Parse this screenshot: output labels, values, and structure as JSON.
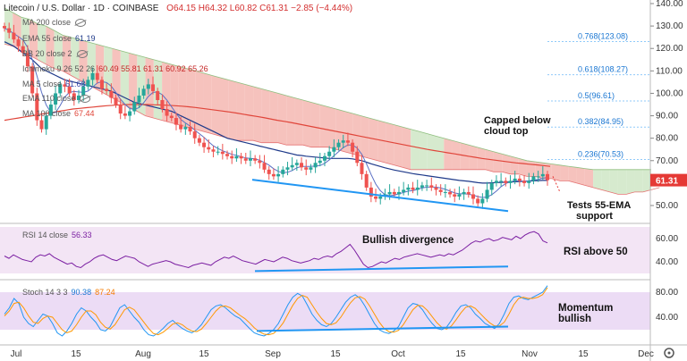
{
  "header": {
    "symbol": "Litecoin / U.S. Dollar · 1D · COINBASE",
    "ohlc": "O64.15 H64.32 L60.82 C61.31 −2.85 (−4.44%)"
  },
  "indicators": [
    {
      "label": "MA 200 close",
      "value": ""
    },
    {
      "label": "EMA 55 close",
      "value": "61.19"
    },
    {
      "label": "BB 20 close 2",
      "value": ""
    },
    {
      "label": "Ichimoku 9 26 52 26",
      "value": "60.49  55.81  61.31  60.92  65.26"
    },
    {
      "label": "MA 5 close",
      "value": "61.68"
    },
    {
      "label": "EMA 110 close",
      "value": ""
    },
    {
      "label": "MA 100 close",
      "value": "67.44"
    }
  ],
  "rsi_label": {
    "label": "RSI 14 close",
    "value": "56.33"
  },
  "stoch_label": {
    "label": "Stoch 14 3 3",
    "value1": "90.38",
    "value2": "87.24"
  },
  "annotations": {
    "capped": [
      "Capped below",
      "cloud top"
    ],
    "tests": [
      "Tests 55-EMA",
      "support"
    ],
    "bullish_div": "Bullish divergence",
    "rsi_above": "RSI above 50",
    "momentum": [
      "Momentum",
      "bullish"
    ]
  },
  "colors": {
    "cloud_red": "#f5b7b1",
    "cloud_green": "#cfe6c5",
    "ema55": "#1f3a8a",
    "ma100": "#e0453a",
    "ma5": "#5a6fc4",
    "price_tag": "#e53935",
    "rsi_line": "#7b1fa2",
    "stoch_k": "#2196f3",
    "stoch_d": "#ff9800",
    "trendline": "#2196f3"
  },
  "chart_data": {
    "type": "candlestick",
    "price_axis": {
      "ticks": [
        140,
        130,
        120,
        110,
        100,
        90,
        80,
        70,
        60,
        50
      ],
      "range": [
        42.5,
        142
      ]
    },
    "time_axis": [
      "Jul",
      "15",
      "Aug",
      "15",
      "Sep",
      "15",
      "Oct",
      "15",
      "Nov",
      "15",
      "Dec"
    ],
    "last_price": "61.31",
    "fib_levels": [
      {
        "label": "0.768(123.08)",
        "value": 123.08
      },
      {
        "label": "0.618(108.27)",
        "value": 108.27
      },
      {
        "label": "0.5(96.61)",
        "value": 96.61
      },
      {
        "label": "0.382(84.95)",
        "value": 84.95
      },
      {
        "label": "0.236(70.53)",
        "value": 70.53
      }
    ],
    "close": [
      129,
      127,
      124,
      121,
      118,
      112,
      100,
      88,
      84,
      90,
      95,
      100,
      104,
      103,
      100,
      97,
      99,
      103,
      106,
      109,
      106,
      102,
      101,
      98,
      95,
      91,
      90,
      92,
      96,
      99,
      102,
      104,
      101,
      97,
      93,
      90,
      89,
      86,
      84,
      85,
      83,
      80,
      78,
      76,
      75,
      74,
      74,
      73,
      72,
      71,
      72,
      71,
      70,
      71,
      70,
      69,
      66,
      64,
      63,
      64,
      66,
      67,
      68,
      69,
      67,
      66,
      67,
      69,
      70,
      72,
      74,
      76,
      78,
      79,
      78,
      74,
      69,
      64,
      58,
      54,
      53,
      54,
      55,
      56,
      55,
      56,
      57,
      58,
      57,
      58,
      59,
      59,
      58,
      57,
      56,
      56,
      55,
      54,
      55,
      56,
      55,
      53,
      51,
      53,
      57,
      60,
      61,
      61,
      60,
      61,
      62,
      61,
      60,
      61,
      63,
      63,
      64,
      61.3
    ],
    "ema55": [
      123,
      122,
      121,
      119.5,
      118,
      116.5,
      115,
      113,
      111,
      110,
      109,
      108,
      107,
      106,
      105.5,
      105,
      104.5,
      104,
      103.5,
      103,
      102.5,
      102,
      101.5,
      101,
      100,
      99,
      98,
      97,
      96,
      95.5,
      95,
      94.5,
      94,
      93.5,
      93,
      92.5,
      92,
      91,
      90,
      89,
      88,
      87,
      86,
      85,
      84,
      83,
      82,
      81,
      80,
      79.5,
      79,
      78.5,
      78,
      77.5,
      77,
      76.5,
      76,
      75.5,
      75,
      74.5,
      74,
      73.5,
      73,
      72.5,
      72.3,
      72,
      71.8,
      71.6,
      71.4,
      71.2,
      71,
      71,
      71,
      71,
      71,
      70.8,
      70.4,
      70,
      69.3,
      68.6,
      68,
      67.4,
      66.8,
      66.3,
      65.8,
      65.4,
      65,
      64.6,
      64.2,
      63.9,
      63.6,
      63.3,
      63,
      62.7,
      62.4,
      62.1,
      61.8,
      61.5,
      61.2,
      61,
      60.8,
      60.5,
      60.2,
      60,
      60,
      60.1,
      60.2,
      60.3,
      60.4,
      60.5,
      60.6,
      60.7,
      60.8,
      60.9,
      61,
      61.1,
      61.2,
      61.2
    ],
    "ma100": [
      88,
      88.5,
      89,
      89.5,
      90,
      90.5,
      91,
      91.5,
      92,
      92.5,
      93,
      93.3,
      93.6,
      93.9,
      94.2,
      94.5,
      94.7,
      94.9,
      95,
      95,
      95,
      95,
      94.9,
      94.8,
      94.7,
      94.5,
      94.3,
      94,
      93.7,
      93.3,
      92.9,
      92.5,
      92.1,
      91.7,
      91.2,
      90.7,
      90.2,
      89.7,
      89.2,
      88.6,
      88,
      87.5,
      87,
      86.4,
      85.8,
      85.2,
      84.6,
      84,
      83.4,
      82.8,
      82.2,
      81.6,
      81,
      80.4,
      79.8,
      79.2,
      78.6,
      78,
      77.4,
      76.8,
      76.2,
      75.6,
      75,
      74.5,
      74,
      73.5,
      73,
      72.5,
      72,
      71.5,
      71,
      70.6,
      70.2,
      69.8,
      69.4,
      69,
      68.7,
      68.4,
      68.1,
      67.8,
      67.44
    ],
    "cloud_top": [
      138,
      136,
      134,
      133,
      131,
      130,
      128,
      126,
      125,
      124,
      123,
      122,
      121,
      120,
      119,
      118,
      117,
      116,
      115,
      114,
      113,
      112,
      111,
      110,
      109,
      108,
      107,
      106,
      105,
      104,
      103,
      102,
      101,
      100,
      99,
      98,
      97,
      96,
      95,
      94,
      93,
      92,
      91,
      90,
      89,
      88,
      87,
      86,
      85,
      84,
      83,
      82,
      81,
      80,
      79,
      78,
      77,
      76,
      75,
      74,
      73,
      72,
      71,
      70,
      69.5,
      69,
      68.5,
      68,
      67.5,
      67,
      66.5,
      66,
      66,
      66,
      66,
      66,
      66,
      66,
      66
    ],
    "cloud_bottom": [
      122,
      121,
      119,
      117,
      115,
      113,
      111,
      110,
      108,
      106,
      104,
      102,
      100,
      98,
      96,
      94,
      92,
      90,
      89,
      88,
      87,
      86,
      85,
      84,
      83,
      82,
      81,
      80,
      79,
      79,
      79,
      78,
      78,
      78,
      77,
      77,
      77,
      76,
      76,
      76,
      75,
      74,
      73,
      72,
      71,
      70,
      69,
      68,
      67,
      66,
      66,
      66,
      66,
      66,
      66,
      66,
      66,
      66,
      66,
      65,
      65,
      64,
      64,
      63,
      63,
      62,
      62,
      61,
      61,
      60,
      59,
      58,
      57,
      56,
      55,
      55,
      56,
      56,
      57,
      58
    ]
  },
  "rsi": {
    "ticks": [
      60,
      40
    ],
    "values": [
      45,
      43,
      46,
      44,
      42,
      41,
      40,
      44,
      46,
      45,
      47,
      44,
      42,
      40,
      38,
      39,
      36,
      35,
      38,
      40,
      43,
      45,
      46,
      44,
      42,
      41,
      43,
      45,
      44,
      43,
      40,
      38,
      36,
      38,
      39,
      40,
      41,
      40,
      38,
      37,
      36,
      35,
      37,
      38,
      39,
      38,
      37,
      40,
      42,
      44,
      43,
      45,
      43,
      41,
      40,
      39,
      38,
      40,
      42,
      41,
      40,
      42,
      44,
      43,
      41,
      40,
      39,
      40,
      41,
      43,
      42,
      44,
      45,
      44,
      47,
      49,
      52,
      55,
      50,
      44,
      38,
      35,
      36,
      38,
      40,
      39,
      41,
      43,
      42,
      44,
      45,
      46,
      47,
      46,
      45,
      44,
      45,
      46,
      45,
      47,
      46,
      48,
      50,
      53,
      56,
      58,
      57,
      59,
      60,
      58,
      59,
      61,
      60,
      59,
      62,
      60,
      63,
      65,
      66,
      64,
      58,
      56.33
    ]
  },
  "stoch": {
    "ticks": [
      80,
      40
    ],
    "k": [
      45,
      55,
      70,
      62,
      40,
      30,
      25,
      35,
      45,
      42,
      30,
      15,
      10,
      18,
      30,
      45,
      55,
      50,
      40,
      32,
      20,
      18,
      25,
      40,
      55,
      60,
      50,
      40,
      32,
      20,
      12,
      10,
      15,
      22,
      30,
      35,
      28,
      22,
      18,
      15,
      20,
      28,
      40,
      52,
      58,
      60,
      55,
      48,
      42,
      38,
      30,
      22,
      15,
      12,
      10,
      14,
      20,
      30,
      45,
      60,
      72,
      78,
      74,
      60,
      45,
      35,
      28,
      25,
      30,
      40,
      52,
      64,
      72,
      76,
      70,
      58,
      44,
      30,
      20,
      16,
      14,
      18,
      25,
      40,
      55,
      62,
      60,
      52,
      40,
      30,
      22,
      20,
      24,
      35,
      48,
      58,
      60,
      55,
      45,
      38,
      30,
      26,
      22,
      30,
      45,
      62,
      72,
      74,
      70,
      68,
      72,
      76,
      80,
      90.38
    ],
    "d": [
      42,
      50,
      62,
      64,
      55,
      42,
      32,
      30,
      38,
      42,
      40,
      30,
      20,
      15,
      18,
      28,
      40,
      50,
      50,
      44,
      32,
      24,
      21,
      28,
      40,
      52,
      56,
      52,
      42,
      32,
      22,
      14,
      12,
      16,
      22,
      29,
      31,
      28,
      22,
      18,
      17,
      21,
      30,
      40,
      50,
      57,
      58,
      55,
      49,
      43,
      38,
      31,
      23,
      17,
      13,
      12,
      14,
      21,
      31,
      45,
      59,
      70,
      75,
      72,
      60,
      48,
      38,
      30,
      28,
      31,
      40,
      52,
      63,
      71,
      73,
      69,
      58,
      45,
      32,
      22,
      17,
      16,
      19,
      28,
      40,
      52,
      59,
      58,
      51,
      41,
      31,
      24,
      21,
      26,
      36,
      47,
      56,
      58,
      54,
      46,
      38,
      31,
      26,
      26,
      32,
      45,
      60,
      70,
      72,
      70,
      70,
      72,
      76,
      87.24
    ]
  },
  "xaxis_icon": "settings-gear-icon"
}
